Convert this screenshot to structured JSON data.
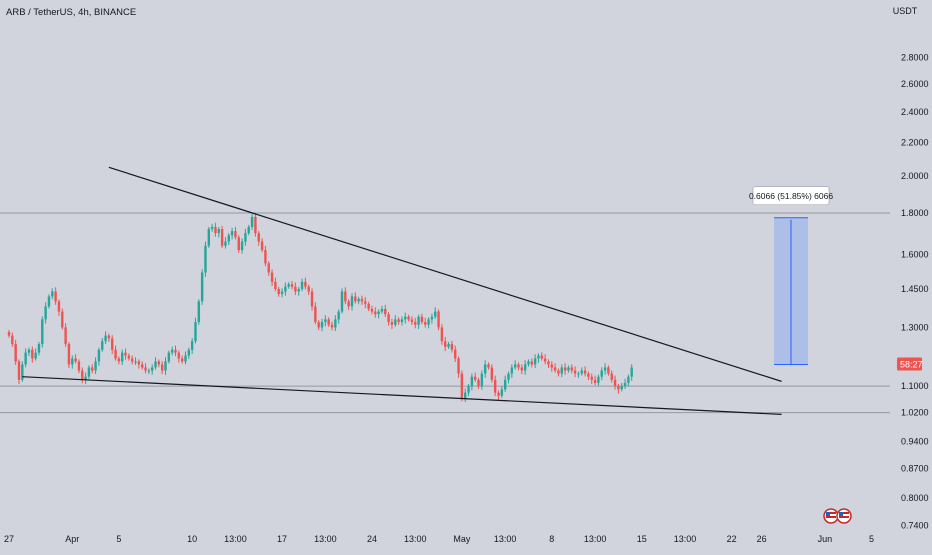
{
  "chart_data": {
    "type": "candlestick",
    "title": "ARB / TetherUS, 4h, BINANCE",
    "currency": "USDT",
    "y_scale": "log",
    "ylim": [
      0.71,
      3.3
    ],
    "y_ticks": [
      {
        "label": "2.8000",
        "value": 2.8
      },
      {
        "label": "2.6000",
        "value": 2.6
      },
      {
        "label": "2.4000",
        "value": 2.4
      },
      {
        "label": "2.2000",
        "value": 2.2
      },
      {
        "label": "2.0000",
        "value": 2.0
      },
      {
        "label": "1.8000",
        "value": 1.8
      },
      {
        "label": "1.6000",
        "value": 1.6
      },
      {
        "label": "1.4500",
        "value": 1.45
      },
      {
        "label": "1.3000",
        "value": 1.3
      },
      {
        "label": "1.1000",
        "value": 1.1
      },
      {
        "label": "1.0200",
        "value": 1.02
      },
      {
        "label": "0.9400",
        "value": 0.94
      },
      {
        "label": "0.8700",
        "value": 0.87
      },
      {
        "label": "0.8000",
        "value": 0.8
      },
      {
        "label": "0.7400",
        "value": 0.74
      }
    ],
    "x_ticks": [
      "27",
      "Apr",
      "5",
      "10",
      "13:00",
      "17",
      "13:00",
      "24",
      "13:00",
      "May",
      "13:00",
      "8",
      "13:00",
      "15",
      "13:00",
      "22",
      "26",
      "Jun",
      "5"
    ],
    "x_tick_index": [
      0,
      19,
      33,
      55,
      68,
      82,
      95,
      109,
      122,
      136,
      149,
      163,
      176,
      190,
      203,
      217,
      226,
      245,
      259
    ],
    "horizontal_lines": [
      1.8,
      1.1,
      1.02
    ],
    "close_series": [
      1.27,
      1.24,
      1.18,
      1.12,
      1.17,
      1.21,
      1.22,
      1.19,
      1.21,
      1.24,
      1.33,
      1.38,
      1.42,
      1.44,
      1.4,
      1.36,
      1.3,
      1.24,
      1.17,
      1.19,
      1.18,
      1.15,
      1.12,
      1.13,
      1.16,
      1.15,
      1.18,
      1.22,
      1.25,
      1.27,
      1.26,
      1.22,
      1.19,
      1.18,
      1.21,
      1.2,
      1.19,
      1.18,
      1.18,
      1.17,
      1.16,
      1.15,
      1.15,
      1.16,
      1.18,
      1.17,
      1.15,
      1.18,
      1.21,
      1.22,
      1.21,
      1.19,
      1.18,
      1.2,
      1.22,
      1.25,
      1.32,
      1.4,
      1.52,
      1.64,
      1.72,
      1.73,
      1.7,
      1.72,
      1.64,
      1.66,
      1.69,
      1.71,
      1.68,
      1.62,
      1.66,
      1.7,
      1.73,
      1.78,
      1.7,
      1.66,
      1.62,
      1.56,
      1.52,
      1.48,
      1.45,
      1.43,
      1.44,
      1.46,
      1.47,
      1.46,
      1.44,
      1.45,
      1.48,
      1.46,
      1.44,
      1.38,
      1.32,
      1.3,
      1.32,
      1.33,
      1.31,
      1.3,
      1.33,
      1.36,
      1.44,
      1.4,
      1.38,
      1.42,
      1.4,
      1.41,
      1.4,
      1.39,
      1.37,
      1.36,
      1.35,
      1.36,
      1.37,
      1.35,
      1.32,
      1.31,
      1.33,
      1.32,
      1.33,
      1.34,
      1.33,
      1.32,
      1.31,
      1.34,
      1.32,
      1.31,
      1.33,
      1.34,
      1.36,
      1.3,
      1.25,
      1.23,
      1.24,
      1.22,
      1.19,
      1.14,
      1.06,
      1.08,
      1.1,
      1.13,
      1.12,
      1.1,
      1.14,
      1.17,
      1.16,
      1.12,
      1.08,
      1.07,
      1.09,
      1.12,
      1.14,
      1.16,
      1.17,
      1.16,
      1.15,
      1.17,
      1.18,
      1.17,
      1.19,
      1.2,
      1.19,
      1.18,
      1.17,
      1.16,
      1.15,
      1.14,
      1.16,
      1.15,
      1.16,
      1.15,
      1.14,
      1.14,
      1.15,
      1.14,
      1.13,
      1.12,
      1.11,
      1.13,
      1.15,
      1.16,
      1.14,
      1.12,
      1.1,
      1.09,
      1.1,
      1.11,
      1.13,
      1.16
    ],
    "trendlines": [
      {
        "start_index": 30,
        "start_value": 2.05,
        "end_index": 232,
        "end_value": 1.115
      },
      {
        "start_index": 4,
        "start_value": 1.13,
        "end_index": 232,
        "end_value": 1.015
      }
    ],
    "price_range_measure": {
      "text": "0.6066 (51.85%) 6066",
      "from_value": 1.17,
      "to_value": 1.776
    },
    "price_label": "58:27",
    "price_value": 1.17
  },
  "colors": {
    "background": "#d1d4dc",
    "up": "#26a69a",
    "down": "#ef5350",
    "trendline": "#131722",
    "measure_fill": "#a7bbe8",
    "measure_line": "#2962ff"
  },
  "icons": [
    "flag-us-icon",
    "flag-us-icon"
  ]
}
